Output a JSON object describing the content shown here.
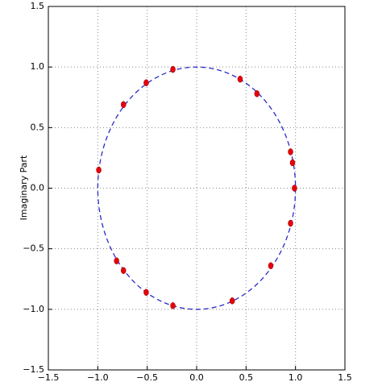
{
  "chart_data": {
    "type": "scatter",
    "y_label": "Imaginary Part",
    "series": [
      {
        "color": "#e8000b",
        "x": [
          -0.24,
          -0.51,
          -0.74,
          -0.99,
          -0.81,
          -0.74,
          -0.51,
          -0.24,
          0.36,
          0.75,
          0.95,
          0.99,
          0.97,
          0.95,
          0.61,
          0.44
        ],
        "values": [
          0.98,
          0.87,
          0.69,
          0.15,
          -0.6,
          -0.68,
          -0.86,
          -0.97,
          -0.93,
          -0.64,
          -0.29,
          0.0,
          0.21,
          0.3,
          0.78,
          0.9
        ]
      }
    ],
    "xlim": [
      -1.5,
      1.5
    ],
    "ylim": [
      -1.5,
      1.5
    ],
    "xticks": [
      {
        "value": -1.5,
        "label": "−1.5"
      },
      {
        "value": -1.0,
        "label": "−1.0"
      },
      {
        "value": -0.5,
        "label": "−0.5"
      },
      {
        "value": 0,
        "label": "0.0"
      },
      0.5,
      {
        "value": 1.0,
        "label": "1.0"
      },
      1.5
    ],
    "yticks": [
      {
        "value": -1.5,
        "label": "−1.5"
      },
      {
        "value": -1.0,
        "label": "−1.0"
      },
      {
        "value": -0.5,
        "label": "−0.5"
      },
      {
        "value": 0,
        "label": "0.0"
      },
      0.5,
      {
        "value": 1.0,
        "label": "1.0"
      },
      1.5
    ],
    "grid": true
  }
}
